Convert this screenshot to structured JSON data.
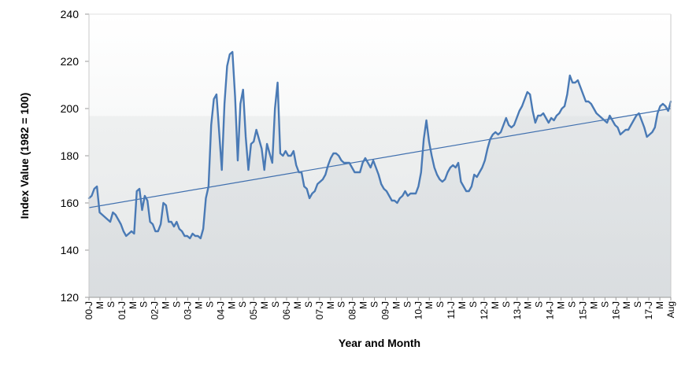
{
  "chart_data": {
    "type": "line",
    "title": "",
    "xlabel": "Year and Month",
    "ylabel": "Index Value (1982 = 100)",
    "ylim": [
      120,
      240
    ],
    "yticks": [
      120,
      140,
      160,
      180,
      200,
      220,
      240
    ],
    "grid": false,
    "legend": "none",
    "x_tick_labels": [
      "00-J",
      "M",
      "S",
      "01-J",
      "M",
      "S",
      "02-J",
      "M",
      "S",
      "03-J",
      "M",
      "S",
      "04-J",
      "M",
      "S",
      "05-J",
      "M",
      "S",
      "06-J",
      "M",
      "S",
      "07-J",
      "M",
      "S",
      "08-J",
      "M",
      "S",
      "09-J",
      "M",
      "S",
      "10-J",
      "M",
      "S",
      "11-J",
      "M",
      "S",
      "12-J",
      "M",
      "S",
      "13-J",
      "M",
      "S",
      "14-J",
      "M",
      "S",
      "15-J",
      "M",
      "S",
      "16-J",
      "M",
      "S",
      "17-J",
      "M",
      "Aug"
    ],
    "series": [
      {
        "color": "#4a7ab5",
        "values": [
          162,
          163,
          166,
          167,
          156,
          155,
          154,
          153,
          152,
          156,
          155,
          153,
          151,
          148,
          146,
          147,
          148,
          147,
          165,
          166,
          157,
          163,
          161,
          152,
          151,
          148,
          148,
          151,
          160,
          159,
          152,
          152,
          150,
          152,
          149,
          148,
          146,
          146,
          145,
          147,
          146,
          146,
          145,
          149,
          162,
          167,
          193,
          204,
          206,
          190,
          174,
          202,
          218,
          223,
          224,
          205,
          178,
          202,
          208,
          188,
          174,
          185,
          186,
          191,
          187,
          183,
          174,
          185,
          181,
          177,
          200,
          211,
          181,
          180,
          182,
          180,
          180,
          182,
          176,
          173,
          173,
          167,
          166,
          162,
          164,
          165,
          168,
          169,
          170,
          172,
          176,
          179,
          181,
          181,
          180,
          178,
          177,
          177,
          177,
          175,
          173,
          173,
          173,
          177,
          179,
          177,
          175,
          178,
          175,
          172,
          168,
          166,
          165,
          163,
          161,
          161,
          160,
          162,
          163,
          165,
          163,
          164,
          164,
          164,
          167,
          173,
          187,
          195,
          186,
          180,
          175,
          172,
          170,
          169,
          170,
          173,
          175,
          176,
          175,
          177,
          169,
          167,
          165,
          165,
          167,
          172,
          171,
          173,
          175,
          178,
          183,
          187,
          189,
          190,
          189,
          190,
          193,
          196,
          193,
          192,
          193,
          196,
          199,
          201,
          204,
          207,
          206,
          199,
          194,
          197,
          197,
          198,
          196,
          194,
          196,
          195,
          197,
          198,
          200,
          201,
          206,
          214,
          211,
          211,
          212,
          209,
          206,
          203,
          203,
          202,
          200,
          198,
          197,
          196,
          195,
          194,
          197,
          195,
          193,
          192,
          189,
          190,
          191,
          191,
          193,
          195,
          197,
          198,
          195,
          192,
          188,
          189,
          190,
          192,
          198,
          201,
          202,
          201,
          199,
          203
        ]
      },
      {
        "name": "",
        "color": "#3f6fae",
        "values": [
          158,
          200
        ]
      }
    ]
  }
}
